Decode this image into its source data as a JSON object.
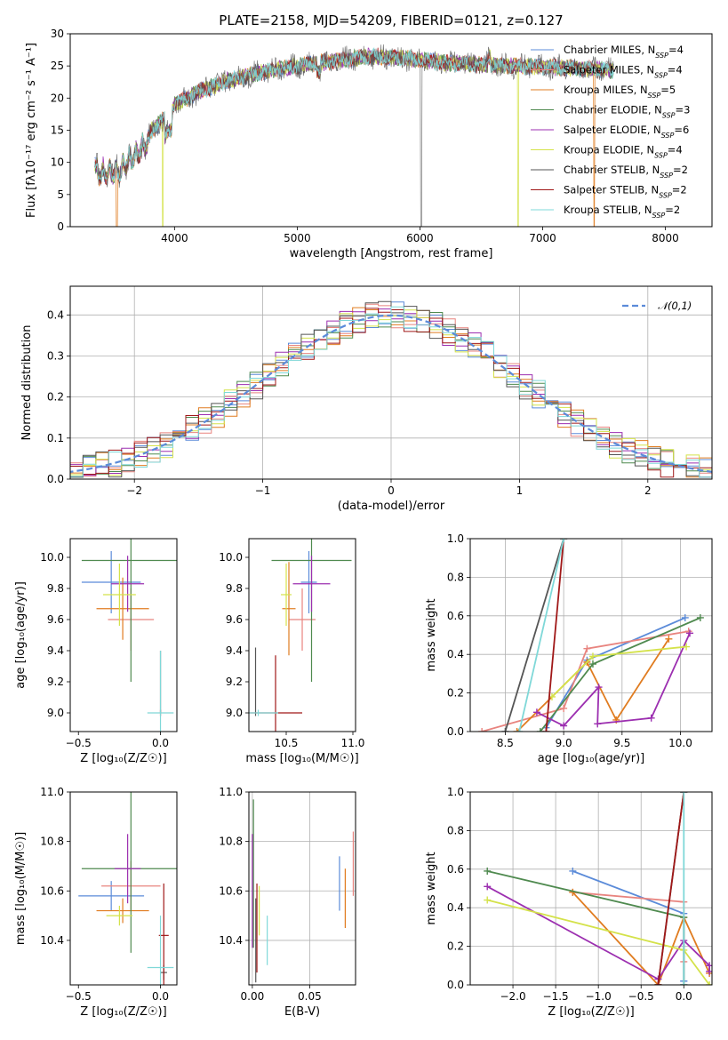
{
  "chart_data": [
    {
      "type": "line",
      "title": "PLATE=2158, MJD=54209, FIBERID=0121, z=0.127",
      "xlabel": "wavelength [Angstrom, rest frame]",
      "ylabel": "Flux [fλ10⁻¹⁷ erg cm⁻² s⁻¹ A⁻¹]",
      "xlim": [
        3150,
        8380
      ],
      "ylim": [
        0,
        30
      ],
      "xticks": [
        4000,
        5000,
        6000,
        7000,
        8000
      ],
      "yticks": [
        0,
        5,
        10,
        15,
        20,
        25,
        30
      ],
      "legend_position": "right",
      "legend": [
        {
          "name": "Chabrier MILES, N_SSP=4",
          "color": "#5b8bd9"
        },
        {
          "name": "Salpeter MILES, N_SSP=4",
          "color": "#e8847f"
        },
        {
          "name": "Kroupa MILES, N_SSP=5",
          "color": "#e07c20"
        },
        {
          "name": "Chabrier ELODIE, N_SSP=3",
          "color": "#4f8a4f"
        },
        {
          "name": "Salpeter ELODIE, N_SSP=6",
          "color": "#9c2fb0"
        },
        {
          "name": "Kroupa ELODIE, N_SSP=4",
          "color": "#d4e24a"
        },
        {
          "name": "Chabrier STELIB, N_SSP=2",
          "color": "#555555"
        },
        {
          "name": "Salpeter STELIB, N_SSP=2",
          "color": "#a01818"
        },
        {
          "name": "Kroupa STELIB, N_SSP=2",
          "color": "#7fd8d8"
        }
      ],
      "continuum_x": [
        3350,
        3550,
        3700,
        3900,
        4000,
        4200,
        4400,
        4700,
        5000,
        5300,
        5600,
        5900,
        6200,
        6500,
        6800,
        7100,
        7400,
        7600
      ],
      "continuum_y": [
        9.5,
        10.0,
        13.0,
        16.5,
        19.0,
        21.0,
        22.5,
        24.0,
        25.0,
        25.8,
        26.5,
        26.2,
        25.5,
        25.2,
        25.0,
        24.8,
        24.5,
        24.3
      ],
      "gridlines": false
    },
    {
      "type": "histogram",
      "xlabel": "(data-model)/error",
      "ylabel": "Normed distribution",
      "xlim": [
        -2.5,
        2.5
      ],
      "ylim": [
        0,
        0.47
      ],
      "xticks": [
        -2,
        -1,
        0,
        1,
        2
      ],
      "yticks": [
        0.0,
        0.1,
        0.2,
        0.3,
        0.4
      ],
      "legend": [
        {
          "name": "𝒩(0,1)",
          "color": "#5b8bd9",
          "style": "dashed"
        }
      ],
      "legend_position": "top-right",
      "bin_width": 0.1,
      "gridlines": true
    },
    {
      "type": "errorbar",
      "xlabel": "Z [log₁₀(Z/Z☉)]",
      "ylabel": "age  [log₁₀(age/yr)]",
      "xlim": [
        -0.55,
        0.1
      ],
      "ylim": [
        8.88,
        10.12
      ],
      "xticks": [
        -0.5,
        0.0
      ],
      "yticks": [
        9.0,
        9.2,
        9.4,
        9.6,
        9.8,
        10.0
      ],
      "points": [
        {
          "color": "#5b8bd9",
          "x": -0.3,
          "xerr": 0.18,
          "y": 9.84,
          "yerr": 0.2
        },
        {
          "color": "#e8847f",
          "x": -0.18,
          "xerr": 0.14,
          "y": 9.6,
          "yerr": 0.2
        },
        {
          "color": "#e07c20",
          "x": -0.23,
          "xerr": 0.16,
          "y": 9.67,
          "yerr": 0.2
        },
        {
          "color": "#4f8a4f",
          "x": -0.18,
          "xerr": 0.3,
          "y": 9.98,
          "yerr": 0.78
        },
        {
          "color": "#9c2fb0",
          "x": -0.2,
          "xerr": 0.1,
          "y": 9.83,
          "yerr": 0.18
        },
        {
          "color": "#d4e24a",
          "x": -0.25,
          "xerr": 0.1,
          "y": 9.76,
          "yerr": 0.2
        },
        {
          "color": "#555555",
          "x": 0.0,
          "xerr": 0.0,
          "y": 9.2,
          "yerr": 0.2
        },
        {
          "color": "#a01818",
          "x": 0.0,
          "xerr": 0.0,
          "y": 9.0,
          "yerr": 0.02
        },
        {
          "color": "#7fd8d8",
          "x": 0.0,
          "xerr": 0.08,
          "y": 9.0,
          "yerr": 0.4
        }
      ]
    },
    {
      "type": "errorbar",
      "xlabel": "mass [log₁₀(M/M☉)]",
      "ylabel": "",
      "xlim": [
        10.22,
        11.02
      ],
      "ylim": [
        8.88,
        10.12
      ],
      "xticks": [
        10.5,
        11.0
      ],
      "yticks": [
        9.0,
        9.2,
        9.4,
        9.6,
        9.8,
        10.0
      ],
      "points": [
        {
          "color": "#5b8bd9",
          "x": 10.67,
          "xerr": 0.06,
          "y": 9.84,
          "yerr": 0.2
        },
        {
          "color": "#e8847f",
          "x": 10.62,
          "xerr": 0.1,
          "y": 9.6,
          "yerr": 0.2
        },
        {
          "color": "#e07c20",
          "x": 10.52,
          "xerr": 0.05,
          "y": 9.67,
          "yerr": 0.3
        },
        {
          "color": "#4f8a4f",
          "x": 10.69,
          "xerr": 0.3,
          "y": 9.98,
          "yerr": 0.78
        },
        {
          "color": "#9c2fb0",
          "x": 10.69,
          "xerr": 0.14,
          "y": 9.83,
          "yerr": 0.18
        },
        {
          "color": "#d4e24a",
          "x": 10.5,
          "xerr": 0.04,
          "y": 9.76,
          "yerr": 0.2
        },
        {
          "color": "#555555",
          "x": 10.27,
          "xerr": 0.0,
          "y": 9.2,
          "yerr": 0.22
        },
        {
          "color": "#a01818",
          "x": 10.42,
          "xerr": 0.2,
          "y": 9.0,
          "yerr": 0.37
        },
        {
          "color": "#7fd8d8",
          "x": 10.29,
          "xerr": 0.15,
          "y": 9.0,
          "yerr": 0.02
        }
      ]
    },
    {
      "type": "line",
      "xlabel": "age  [log₁₀(age/yr)]",
      "ylabel": "mass weight",
      "xlim": [
        8.2,
        10.27
      ],
      "ylim": [
        0,
        1
      ],
      "xticks": [
        8.5,
        9.0,
        9.5,
        10.0
      ],
      "yticks": [
        0.0,
        0.2,
        0.4,
        0.6,
        0.8,
        1.0
      ],
      "gridlines": true,
      "series": [
        {
          "color": "#5b8bd9",
          "x": [
            8.85,
            9.2,
            10.04
          ],
          "y": [
            0.02,
            0.37,
            0.59
          ]
        },
        {
          "color": "#e8847f",
          "x": [
            8.3,
            9.0,
            9.2,
            10.07
          ],
          "y": [
            0.0,
            0.12,
            0.43,
            0.52
          ]
        },
        {
          "color": "#e07c20",
          "x": [
            8.6,
            9.2,
            9.45,
            9.9
          ],
          "y": [
            0.0,
            0.36,
            0.06,
            0.48
          ]
        },
        {
          "color": "#4f8a4f",
          "x": [
            8.8,
            9.25,
            10.17
          ],
          "y": [
            0.0,
            0.35,
            0.59
          ]
        },
        {
          "color": "#9c2fb0",
          "x": [
            8.77,
            9.0,
            9.3,
            9.29,
            9.75,
            10.08
          ],
          "y": [
            0.1,
            0.03,
            0.23,
            0.04,
            0.07,
            0.51
          ]
        },
        {
          "color": "#d4e24a",
          "x": [
            8.9,
            9.25,
            10.05
          ],
          "y": [
            0.18,
            0.39,
            0.44
          ]
        },
        {
          "color": "#555555",
          "x": [
            8.5,
            9.0
          ],
          "y": [
            0.0,
            1.0
          ]
        },
        {
          "color": "#a01818",
          "x": [
            8.85,
            9.0
          ],
          "y": [
            0.0,
            1.0
          ]
        },
        {
          "color": "#7fd8d8",
          "x": [
            8.62,
            9.0
          ],
          "y": [
            0.0,
            1.0
          ]
        }
      ]
    },
    {
      "type": "errorbar",
      "xlabel": "Z [log₁₀(Z/Z☉)]",
      "ylabel": "mass [log₁₀(M/M☉)]",
      "xlim": [
        -0.55,
        0.1
      ],
      "ylim": [
        10.22,
        11.0
      ],
      "xticks": [
        -0.5,
        0.0
      ],
      "yticks": [
        10.4,
        10.6,
        10.8,
        11.0
      ],
      "points": [
        {
          "color": "#5b8bd9",
          "x": -0.3,
          "xerr": 0.2,
          "y": 10.58,
          "yerr": 0.06
        },
        {
          "color": "#e8847f",
          "x": -0.18,
          "xerr": 0.18,
          "y": 10.62,
          "yerr": 0.1
        },
        {
          "color": "#e07c20",
          "x": -0.23,
          "xerr": 0.16,
          "y": 10.52,
          "yerr": 0.05
        },
        {
          "color": "#4f8a4f",
          "x": -0.18,
          "xerr": 0.3,
          "y": 10.69,
          "yerr": 0.34
        },
        {
          "color": "#9c2fb0",
          "x": -0.2,
          "xerr": 0.08,
          "y": 10.69,
          "yerr": 0.14
        },
        {
          "color": "#d4e24a",
          "x": -0.25,
          "xerr": 0.08,
          "y": 10.5,
          "yerr": 0.04
        },
        {
          "color": "#555555",
          "x": 0.02,
          "xerr": 0.02,
          "y": 10.27,
          "yerr": 0.03
        },
        {
          "color": "#a01818",
          "x": 0.02,
          "xerr": 0.03,
          "y": 10.42,
          "yerr": 0.21
        },
        {
          "color": "#7fd8d8",
          "x": 0.0,
          "xerr": 0.08,
          "y": 10.29,
          "yerr": 0.21
        }
      ]
    },
    {
      "type": "errorbar",
      "xlabel": "E(B-V)",
      "ylabel": "",
      "xlim": [
        -0.003,
        0.09
      ],
      "ylim": [
        10.22,
        11.0
      ],
      "xticks": [
        0.0,
        0.05
      ],
      "yticks": [
        10.4,
        10.6,
        10.8,
        11.0
      ],
      "gridlines": true,
      "points": [
        {
          "color": "#5b8bd9",
          "x": 0.076,
          "y": 10.63,
          "yerr": 0.11
        },
        {
          "color": "#e8847f",
          "x": 0.088,
          "y": 10.71,
          "yerr": 0.13
        },
        {
          "color": "#e07c20",
          "x": 0.081,
          "y": 10.57,
          "yerr": 0.12
        },
        {
          "color": "#4f8a4f",
          "x": 0.001,
          "y": 10.67,
          "yerr": 0.3
        },
        {
          "color": "#9c2fb0",
          "x": 0.0,
          "y": 10.6,
          "yerr": 0.23
        },
        {
          "color": "#d4e24a",
          "x": 0.006,
          "y": 10.52,
          "yerr": 0.1
        },
        {
          "color": "#555555",
          "x": 0.003,
          "y": 10.4,
          "yerr": 0.17
        },
        {
          "color": "#a01818",
          "x": 0.004,
          "y": 10.45,
          "yerr": 0.18
        },
        {
          "color": "#7fd8d8",
          "x": 0.013,
          "y": 10.4,
          "yerr": 0.1
        }
      ]
    },
    {
      "type": "line",
      "xlabel": "Z [log₁₀(Z/Z☉)]",
      "ylabel": "mass weight",
      "xlim": [
        -2.5,
        0.33
      ],
      "ylim": [
        0,
        1
      ],
      "xticks": [
        -2.0,
        -1.5,
        -1.0,
        -0.5,
        0.0
      ],
      "yticks": [
        0.0,
        0.2,
        0.4,
        0.6,
        0.8,
        1.0
      ],
      "gridlines": true,
      "series": [
        {
          "color": "#5b8bd9",
          "x": [
            -1.3,
            0.0,
            0.0,
            0.0
          ],
          "y": [
            0.59,
            0.37,
            0.02,
            0.02
          ]
        },
        {
          "color": "#e8847f",
          "x": [
            -1.3,
            0.0,
            0.0,
            0.0
          ],
          "y": [
            0.48,
            0.43,
            0.0,
            0.12
          ]
        },
        {
          "color": "#e07c20",
          "x": [
            -1.3,
            -0.3,
            0.0,
            0.3
          ],
          "y": [
            0.48,
            0.0,
            0.35,
            0.06
          ]
        },
        {
          "color": "#4f8a4f",
          "x": [
            -2.3,
            0.0,
            0.0
          ],
          "y": [
            0.59,
            0.35,
            0.0
          ]
        },
        {
          "color": "#9c2fb0",
          "x": [
            -2.3,
            -0.3,
            0.0,
            0.3,
            0.3
          ],
          "y": [
            0.51,
            0.03,
            0.23,
            0.1,
            0.07
          ]
        },
        {
          "color": "#d4e24a",
          "x": [
            -2.3,
            0.0,
            0.3
          ],
          "y": [
            0.44,
            0.18,
            0.0
          ]
        },
        {
          "color": "#555555",
          "x": [
            -0.3,
            0.0
          ],
          "y": [
            0.0,
            1.0
          ]
        },
        {
          "color": "#a01818",
          "x": [
            -0.3,
            0.0
          ],
          "y": [
            0.0,
            1.0
          ]
        },
        {
          "color": "#7fd8d8",
          "x": [
            0.0,
            0.0
          ],
          "y": [
            0.0,
            1.0
          ]
        }
      ]
    }
  ]
}
